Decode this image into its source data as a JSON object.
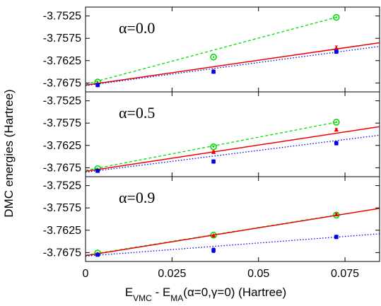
{
  "chart_data": {
    "type": "line",
    "ylabel": "DMC energies (Hartree)",
    "xlabel": {
      "parts": [
        {
          "t": "E",
          "s": "normal"
        },
        {
          "t": "VMC",
          "s": "sub"
        },
        {
          "t": " - E",
          "s": "normal"
        },
        {
          "t": "MA",
          "s": "sub"
        },
        {
          "t": "(α=0,γ=0) (Hartree)",
          "s": "normal"
        }
      ]
    },
    "xlim": [
      0,
      0.085
    ],
    "x_ticks": [
      0,
      0.025,
      0.05,
      0.075
    ],
    "x_tick_labels": [
      "0",
      "0.025",
      "0.05",
      "0.075"
    ],
    "ylim": [
      -3.7695,
      -3.7505
    ],
    "y_ticks": [
      -3.7525,
      -3.7575,
      -3.7625,
      -3.7675
    ],
    "y_tick_labels": [
      "-3.7525",
      "-3.7575",
      "-3.7625",
      "-3.7675"
    ],
    "colors": {
      "green": "#00dd00",
      "red": "#ee0000",
      "blue": "#0000ee"
    },
    "panels": [
      {
        "label": "α=0.0",
        "series": [
          {
            "color": "green",
            "marker": "open-circle",
            "line": "dashed",
            "x": [
              0.0035,
              0.037,
              0.0725
            ],
            "y": [
              -3.7673,
              -3.7617,
              -3.7528
            ],
            "fit": [
              [
                0,
                -3.7678
              ],
              [
                0.0725,
                -3.7528
              ]
            ]
          },
          {
            "color": "red",
            "marker": "filled-triangle",
            "line": "solid",
            "x": [
              0.0035,
              0.037,
              0.0725
            ],
            "y": [
              -3.7677,
              -3.7648,
              -3.7597
            ],
            "yerr": [
              0.0002,
              0.0002,
              0.0005
            ],
            "fit": [
              [
                0,
                -3.768
              ],
              [
                0.085,
                -3.7585
              ]
            ]
          },
          {
            "color": "blue",
            "marker": "filled-square",
            "line": "dotted",
            "x": [
              0.0035,
              0.037,
              0.0725
            ],
            "y": [
              -3.768,
              -3.765,
              -3.7605
            ],
            "yerr": [
              0.0002,
              0.0003,
              0.0004
            ],
            "fit": [
              [
                0,
                -3.7681
              ],
              [
                0.085,
                -3.7593
              ]
            ]
          }
        ]
      },
      {
        "label": "α=0.5",
        "series": [
          {
            "color": "green",
            "marker": "open-circle",
            "line": "dashed",
            "x": [
              0.0035,
              0.037,
              0.0725
            ],
            "y": [
              -3.7677,
              -3.7628,
              -3.7573
            ],
            "fit": [
              [
                0,
                -3.7681
              ],
              [
                0.0725,
                -3.7573
              ]
            ]
          },
          {
            "color": "red",
            "marker": "filled-triangle",
            "line": "solid",
            "x": [
              0.0035,
              0.037,
              0.0725
            ],
            "y": [
              -3.7681,
              -3.764,
              -3.759
            ],
            "yerr": [
              0.0002,
              0.0003,
              0.0003
            ],
            "fit": [
              [
                0,
                -3.7683
              ],
              [
                0.085,
                -3.7583
              ]
            ]
          },
          {
            "color": "blue",
            "marker": "filled-square",
            "line": "dotted",
            "x": [
              0.0035,
              0.037,
              0.0725
            ],
            "y": [
              -3.7682,
              -3.7661,
              -3.762
            ],
            "yerr": [
              0.0002,
              0.0004,
              0.0004
            ],
            "fit": [
              [
                0,
                -3.7685
              ],
              [
                0.085,
                -3.7602
              ]
            ]
          }
        ]
      },
      {
        "label": "α=0.9",
        "series": [
          {
            "color": "green",
            "marker": "open-circle",
            "line": "dashed",
            "x": [
              0.0035,
              0.037,
              0.0725
            ],
            "y": [
              -3.7676,
              -3.7636,
              -3.7591
            ],
            "fit": [
              [
                0,
                -3.7681
              ],
              [
                0.0725,
                -3.7591
              ]
            ]
          },
          {
            "color": "red",
            "marker": "filled-triangle",
            "line": "solid",
            "x": [
              0.0035,
              0.037,
              0.0725
            ],
            "y": [
              -3.7678,
              -3.7637,
              -3.759
            ],
            "yerr": [
              0.0002,
              0.0002,
              0.0003
            ],
            "fit": [
              [
                0,
                -3.7682
              ],
              [
                0.085,
                -3.7576
              ]
            ]
          },
          {
            "color": "blue",
            "marker": "filled-square",
            "line": "dotted",
            "x": [
              0.0035,
              0.037,
              0.0725
            ],
            "y": [
              -3.768,
              -3.767,
              -3.764
            ],
            "yerr": [
              0.0002,
              0.0005,
              0.0004
            ],
            "fit": [
              [
                0,
                -3.7683
              ],
              [
                0.085,
                -3.7633
              ]
            ]
          }
        ]
      }
    ]
  }
}
